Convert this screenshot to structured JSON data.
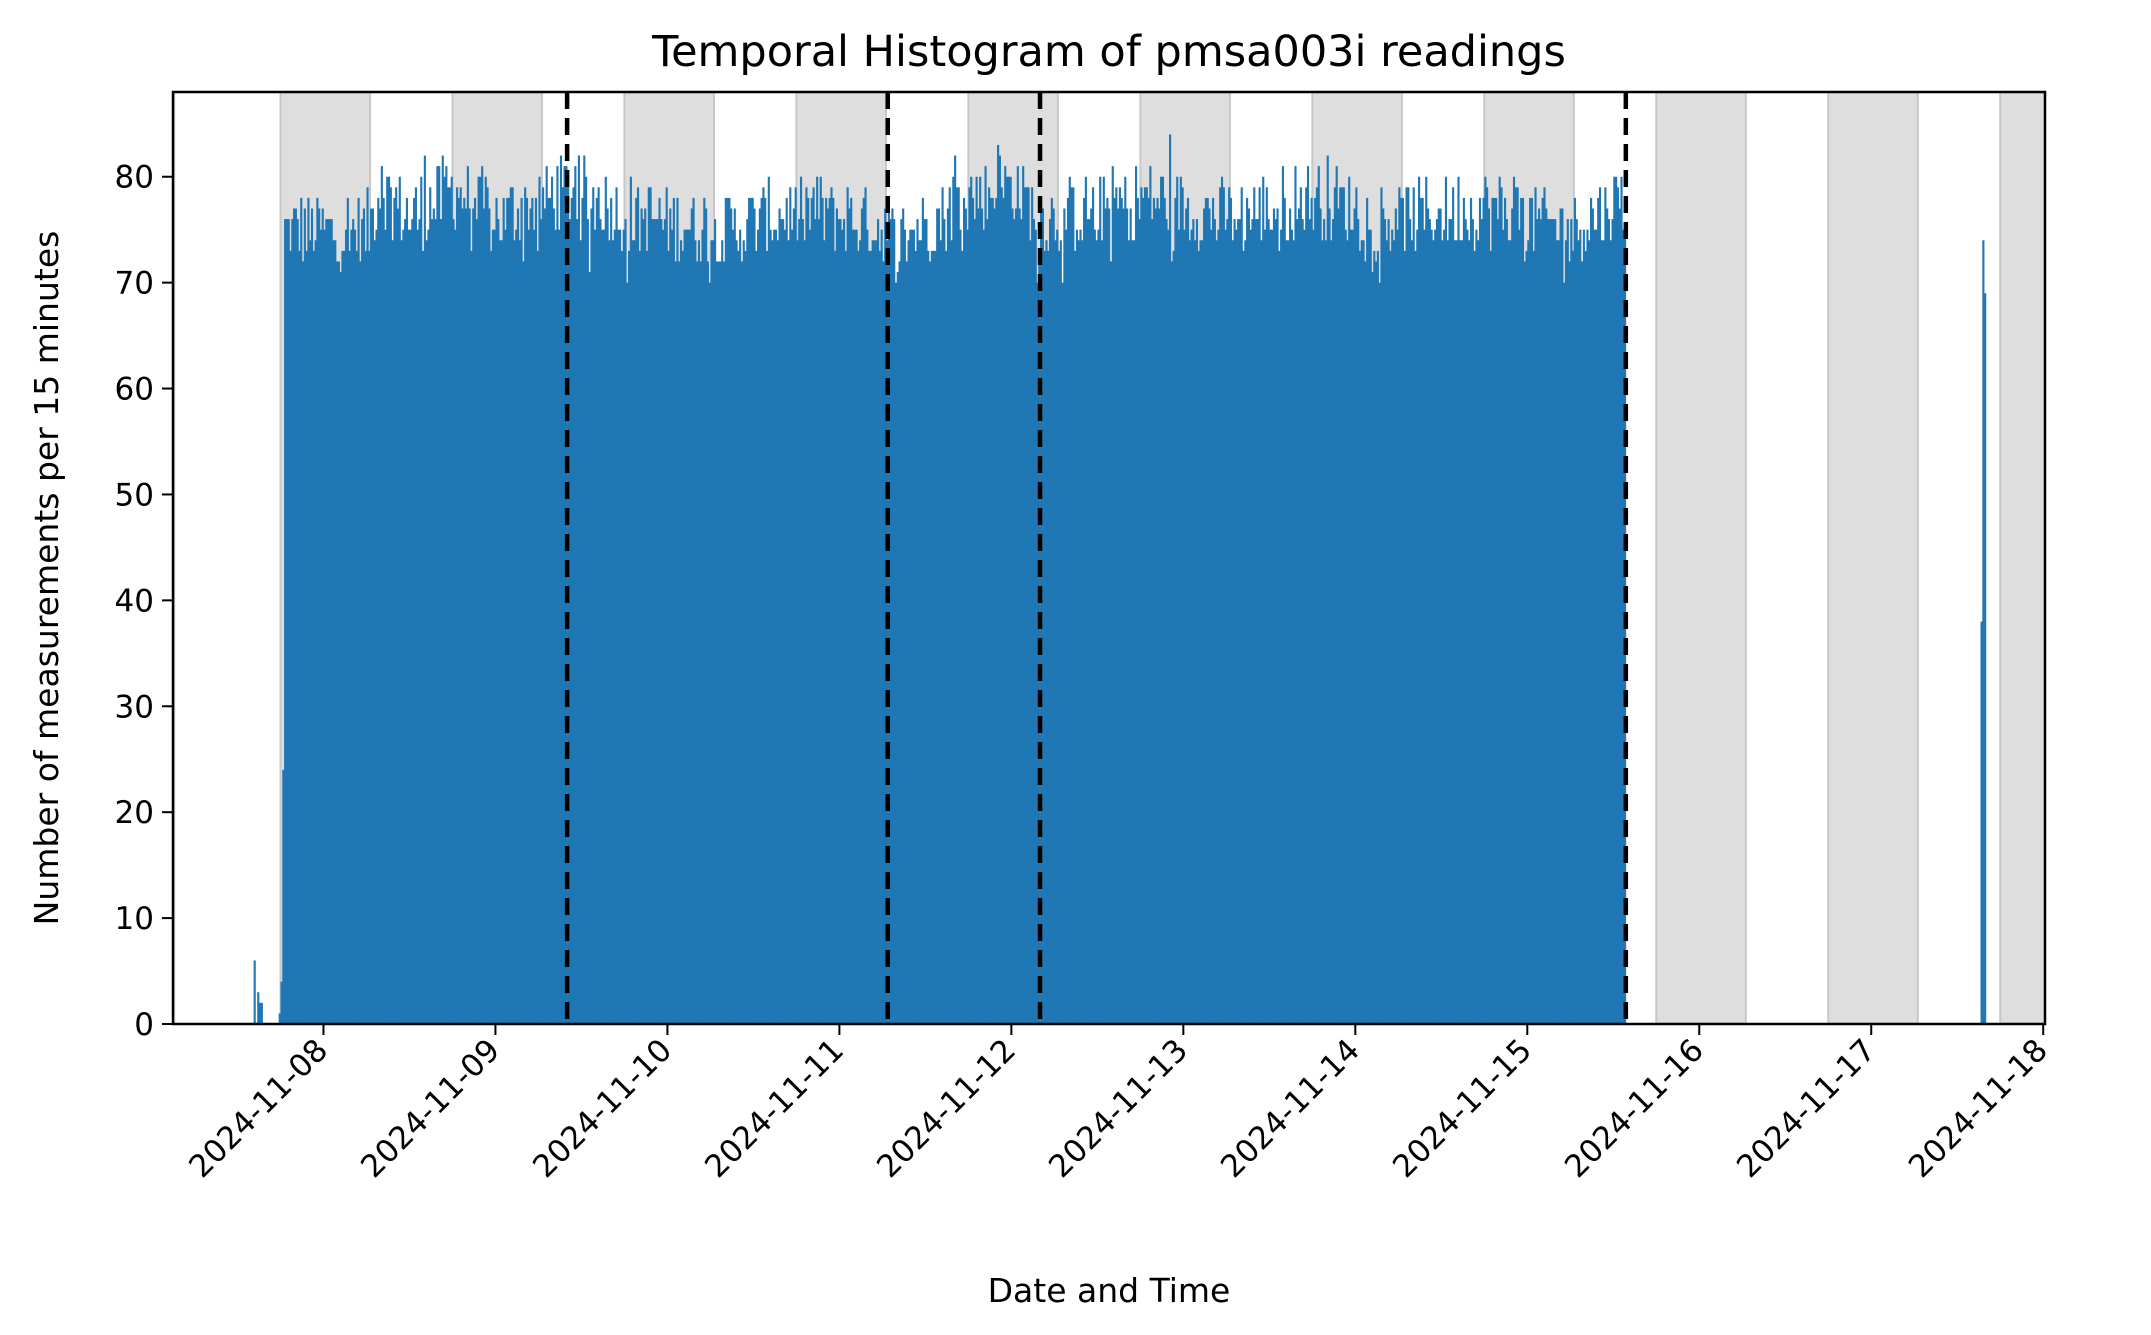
{
  "chart_data": {
    "type": "bar",
    "title": "Temporal Histogram of pmsa003i readings",
    "xlabel": "Date and Time",
    "ylabel": "Number of measurements per 15 minutes",
    "bin": "15 minutes",
    "xlim": [
      "2024-11-07T03:00",
      "2024-11-18T00:15"
    ],
    "ylim": [
      0,
      88
    ],
    "x_ticks": [
      "2024-11-08",
      "2024-11-09",
      "2024-11-10",
      "2024-11-11",
      "2024-11-12",
      "2024-11-13",
      "2024-11-14",
      "2024-11-15",
      "2024-11-16",
      "2024-11-17",
      "2024-11-18"
    ],
    "y_ticks": [
      0,
      10,
      20,
      30,
      40,
      50,
      60,
      70,
      80
    ],
    "grid": false,
    "legend": null,
    "night_shading": {
      "color": "#dedede",
      "edge_color": "#c8c8c8",
      "periods": [
        [
          "2024-11-07T03:00",
          "2024-11-07T03:10"
        ],
        [
          "2024-11-07T18:00",
          "2024-11-08T06:30"
        ],
        [
          "2024-11-08T18:00",
          "2024-11-09T06:30"
        ],
        [
          "2024-11-09T18:00",
          "2024-11-10T06:30"
        ],
        [
          "2024-11-10T18:00",
          "2024-11-11T06:30"
        ],
        [
          "2024-11-11T18:00",
          "2024-11-12T06:30"
        ],
        [
          "2024-11-12T18:00",
          "2024-11-13T06:30"
        ],
        [
          "2024-11-13T18:00",
          "2024-11-14T06:30"
        ],
        [
          "2024-11-14T18:00",
          "2024-11-15T06:30"
        ],
        [
          "2024-11-15T18:00",
          "2024-11-16T06:30"
        ],
        [
          "2024-11-16T18:00",
          "2024-11-17T06:30"
        ],
        [
          "2024-11-17T18:00",
          "2024-11-18T00:15"
        ]
      ]
    },
    "vertical_lines": {
      "style": "dashed",
      "color": "#000000",
      "x": [
        "2024-11-09T10:00",
        "2024-11-11T06:45",
        "2024-11-12T04:00",
        "2024-11-15T13:45"
      ]
    },
    "series": [
      {
        "color": "#1f77b4",
        "segments": [
          {
            "x_start": "2024-11-07T14:15",
            "values": [
              6,
              0,
              3,
              2,
              2
            ]
          },
          {
            "x_start": "2024-11-07T17:45",
            "values": [
              1,
              4,
              24
            ]
          },
          {
            "x_start": "2024-11-07T18:30",
            "end": "2024-11-15T13:45",
            "base_level": 75,
            "variation": 4.5,
            "profile": [
              [
                "2024-11-07T18:30",
                75
              ],
              [
                "2024-11-08T06:00",
                75
              ],
              [
                "2024-11-08T08:00",
                79
              ],
              [
                "2024-11-08T12:00",
                76
              ],
              [
                "2024-11-08T18:00",
                79
              ],
              [
                "2024-11-09T00:00",
                76
              ],
              [
                "2024-11-09T10:00",
                79
              ],
              [
                "2024-11-09T20:00",
                76
              ],
              [
                "2024-11-10T08:00",
                75
              ],
              [
                "2024-11-10T20:00",
                77
              ],
              [
                "2024-11-11T06:45",
                75
              ],
              [
                "2024-11-11T08:00",
                74
              ],
              [
                "2024-11-11T18:00",
                78
              ],
              [
                "2024-11-12T00:00",
                79
              ],
              [
                "2024-11-12T04:00",
                76
              ],
              [
                "2024-11-12T12:00",
                77
              ],
              [
                "2024-11-12T20:00",
                78
              ],
              [
                "2024-11-13T06:00",
                76
              ],
              [
                "2024-11-13T18:00",
                78
              ],
              [
                "2024-11-14T06:00",
                76
              ],
              [
                "2024-11-14T18:00",
                77
              ],
              [
                "2024-11-15T06:00",
                75
              ],
              [
                "2024-11-15T13:45",
                78
              ]
            ],
            "peaks": [
              [
                "2024-11-08T08:00",
                81
              ],
              [
                "2024-11-08T14:00",
                82
              ],
              [
                "2024-11-09T11:00",
                81
              ],
              [
                "2024-11-11T16:00",
                82
              ],
              [
                "2024-11-11T22:00",
                83
              ],
              [
                "2024-11-12T22:00",
                84
              ],
              [
                "2024-11-13T20:00",
                82
              ],
              [
                "2024-11-14T22:00",
                80
              ]
            ]
          },
          {
            "x_start": "2024-11-17T15:15",
            "values": [
              38,
              74,
              69
            ]
          }
        ]
      }
    ]
  }
}
